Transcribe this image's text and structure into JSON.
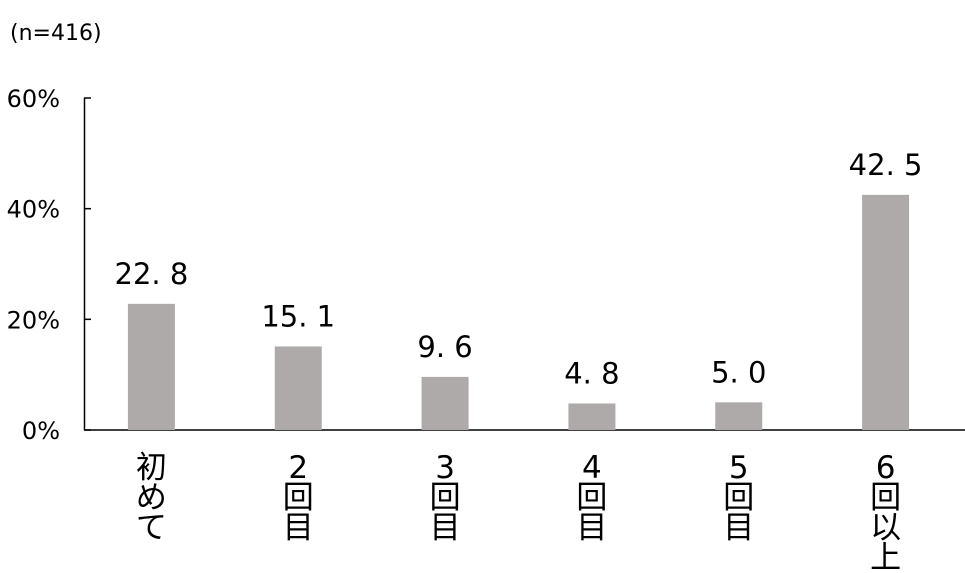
{
  "note": "(n=416)",
  "chart_data": {
    "type": "bar",
    "categories": [
      "初めて",
      "2回目",
      "3回目",
      "4回目",
      "5回目",
      "6回以上"
    ],
    "values": [
      22.8,
      15.1,
      9.6,
      4.8,
      5.0,
      42.5
    ],
    "value_labels": [
      "22. 8",
      "15. 1",
      "9. 6",
      "4. 8",
      "5. 0",
      "42. 5"
    ],
    "title": "",
    "xlabel": "",
    "ylabel": "",
    "ylim": [
      0,
      60
    ],
    "yticks": [
      0,
      20,
      40,
      60
    ],
    "ytick_labels": [
      "0%",
      "20%",
      "40%",
      "60%"
    ],
    "grid": false,
    "bar_color": "#aeaaaa"
  }
}
